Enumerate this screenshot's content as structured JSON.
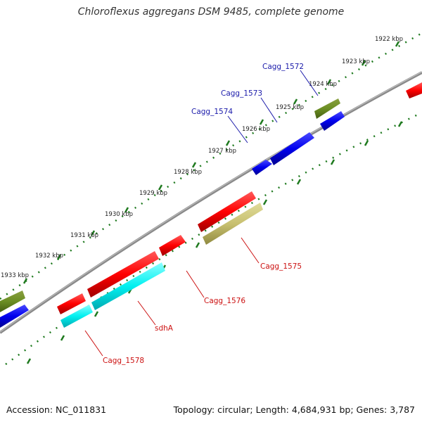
{
  "title": "Chloroflexus aggregans DSM 9485, complete genome",
  "footer": {
    "accession": "Accession: NC_011831",
    "summary": "Topology: circular; Length: 4,684,931 bp; Genes: 3,787"
  },
  "colors": {
    "backbone": "#8a8a8a",
    "ticks": "#1f7a1f",
    "label_blue": "#1a1aaa",
    "label_red": "#cc1111"
  },
  "tick_labels": [
    "1922 kbp",
    "1923 kbp",
    "1924 kbp",
    "1925 kbp",
    "1926 kbp",
    "1927 kbp",
    "1928 kbp",
    "1929 kbp",
    "1930 kbp",
    "1931 kbp",
    "1932 kbp",
    "1933 kbp"
  ],
  "gene_labels": [
    "Cagg_1572",
    "Cagg_1573",
    "Cagg_1574",
    "Cagg_1575",
    "Cagg_1576",
    "sdhA",
    "Cagg_1578"
  ]
}
